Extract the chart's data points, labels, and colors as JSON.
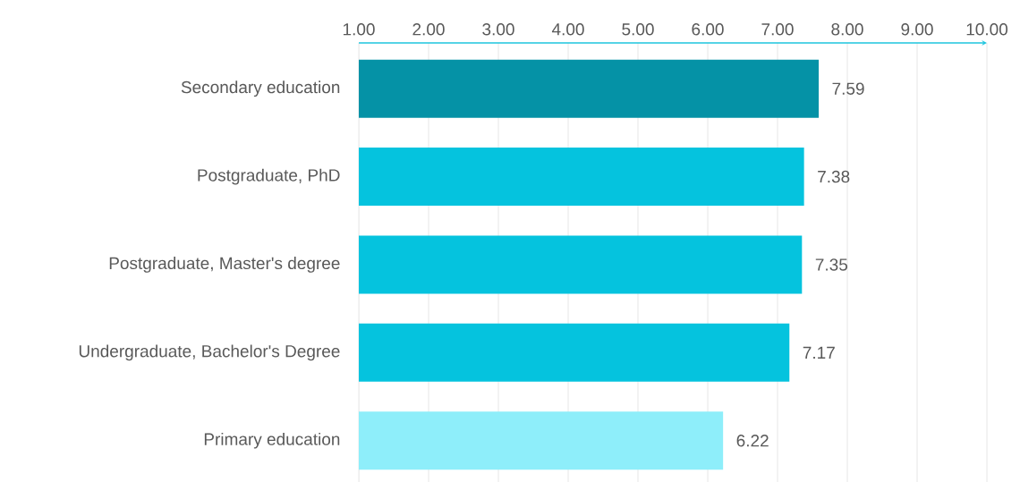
{
  "chart_data": {
    "type": "bar",
    "orientation": "horizontal",
    "categories": [
      "Secondary education",
      "Postgraduate, PhD",
      "Postgraduate, Master's degree",
      "Undergraduate, Bachelor's Degree",
      "Primary education"
    ],
    "values": [
      7.59,
      7.38,
      7.35,
      7.17,
      6.22
    ],
    "colors": [
      "#0592a6",
      "#05c3de",
      "#05c3de",
      "#05c3de",
      "#8eeefa"
    ],
    "xlim": [
      1,
      10
    ],
    "xticks": [
      {
        "value": 1,
        "label": "1.00"
      },
      {
        "value": 2,
        "label": "2.00"
      },
      {
        "value": 3,
        "label": "3.00"
      },
      {
        "value": 4,
        "label": "4.00"
      },
      {
        "value": 5,
        "label": "5.00"
      },
      {
        "value": 6,
        "label": "6.00"
      },
      {
        "value": 7,
        "label": "7.00"
      },
      {
        "value": 8,
        "label": "8.00"
      },
      {
        "value": 9,
        "label": "9.00"
      },
      {
        "value": 10,
        "label": "10.00"
      }
    ],
    "grid": "x",
    "data_labels": true
  }
}
